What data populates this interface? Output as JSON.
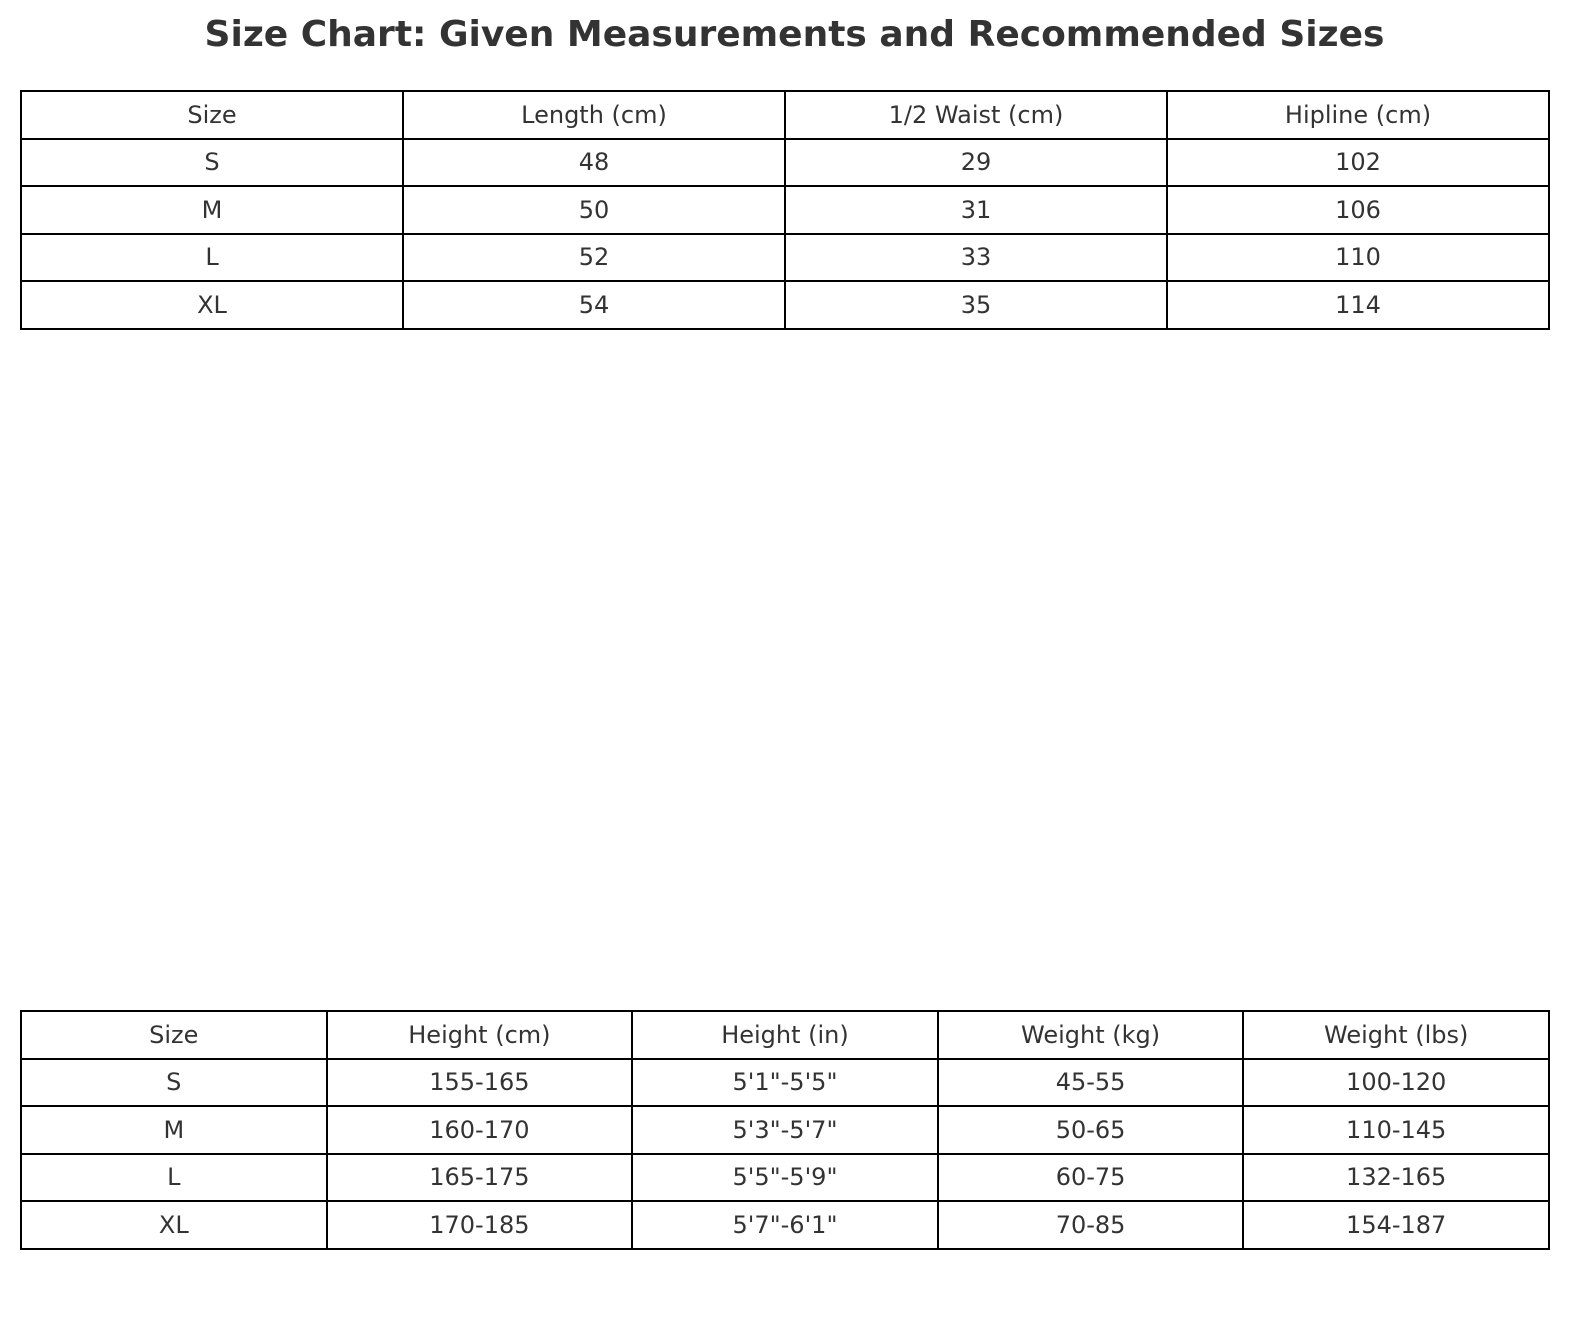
{
  "chart_data": [
    {
      "type": "table",
      "title": "Size Chart: Given Measurements and Recommended Sizes",
      "columns": [
        "Size",
        "Length (cm)",
        "1/2 Waist (cm)",
        "Hipline (cm)"
      ],
      "rows": [
        [
          "S",
          "48",
          "29",
          "102"
        ],
        [
          "M",
          "50",
          "31",
          "106"
        ],
        [
          "L",
          "52",
          "33",
          "110"
        ],
        [
          "XL",
          "54",
          "35",
          "114"
        ]
      ]
    },
    {
      "type": "table",
      "columns": [
        "Size",
        "Height (cm)",
        "Height (in)",
        "Weight (kg)",
        "Weight (lbs)"
      ],
      "rows": [
        [
          "S",
          "155-165",
          "5'1\"-5'5\"",
          "45-55",
          "100-120"
        ],
        [
          "M",
          "160-170",
          "5'3\"-5'7\"",
          "50-65",
          "110-145"
        ],
        [
          "L",
          "165-175",
          "5'5\"-5'9\"",
          "60-75",
          "132-165"
        ],
        [
          "XL",
          "170-185",
          "5'7\"-6'1\"",
          "70-85",
          "154-187"
        ]
      ]
    }
  ]
}
